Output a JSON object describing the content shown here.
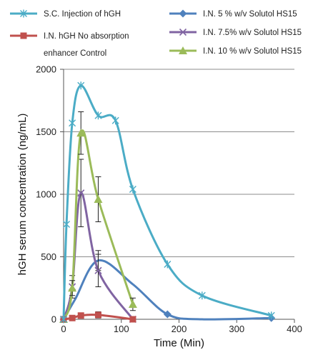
{
  "chart_data": {
    "type": "line",
    "xlabel": "Time (Min)",
    "ylabel": "hGH serum concentration (ng/mL)",
    "xlim": [
      0,
      400
    ],
    "ylim": [
      0,
      2000
    ],
    "x_ticks": [
      "0",
      "100",
      "200",
      "300",
      "400"
    ],
    "y_ticks": [
      "0",
      "500",
      "1000",
      "1500",
      "2000"
    ],
    "grid": "horizontal",
    "legend_placement": "top",
    "series": [
      {
        "name": "S.C. Injection of hGH",
        "color": "#4bacc6",
        "marker": "asterisk",
        "x": [
          0,
          5,
          15,
          30,
          60,
          90,
          120,
          180,
          240,
          360
        ],
        "y": [
          0,
          760,
          1570,
          1870,
          1630,
          1590,
          1040,
          440,
          190,
          30
        ]
      },
      {
        "name": "I.N. hGH No absorption enhancer Control",
        "color": "#c0504d",
        "marker": "square",
        "x": [
          0,
          15,
          30,
          60,
          120
        ],
        "y": [
          0,
          10,
          30,
          35,
          0
        ],
        "error": [
          0,
          10,
          15,
          25,
          0
        ]
      },
      {
        "name": "I.N. 5 % w/v Solutol HS15",
        "color": "#4f81bd",
        "marker": "diamond",
        "x": [
          0,
          180,
          360
        ],
        "y": [
          0,
          40,
          10
        ]
      },
      {
        "name": "I.N. 7.5% w/v Solutol HS15",
        "color": "#8064a2",
        "marker": "x",
        "x": [
          0,
          15,
          30,
          60,
          120
        ],
        "y": [
          0,
          260,
          1010,
          390,
          0
        ],
        "error": [
          0,
          90,
          270,
          130,
          0
        ]
      },
      {
        "name": "I.N. 10 % w/v Solutol HS15",
        "color": "#9bbb59",
        "marker": "triangle",
        "x": [
          0,
          15,
          30,
          60,
          120
        ],
        "y": [
          0,
          250,
          1490,
          960,
          120
        ],
        "error": [
          0,
          60,
          170,
          180,
          50
        ]
      }
    ],
    "legend": [
      "S.C. Injection of hGH",
      "I.N. 5 % w/v Solutol HS15",
      "I.N. hGH No absorption",
      "enhancer Control",
      "I.N. 7.5% w/v Solutol HS15",
      "I.N. 10 % w/v Solutol HS15"
    ]
  },
  "extra_curves": {
    "note_free_blue_peak_series": "I.N. 5 % w/v Solutol HS15",
    "blue_smooth_points": [
      [
        0,
        0
      ],
      [
        20,
        160
      ],
      [
        60,
        470
      ],
      [
        120,
        280
      ],
      [
        180,
        40
      ],
      [
        240,
        0
      ],
      [
        360,
        10
      ]
    ],
    "blue_error_at_60": [
      470,
      80
    ]
  }
}
